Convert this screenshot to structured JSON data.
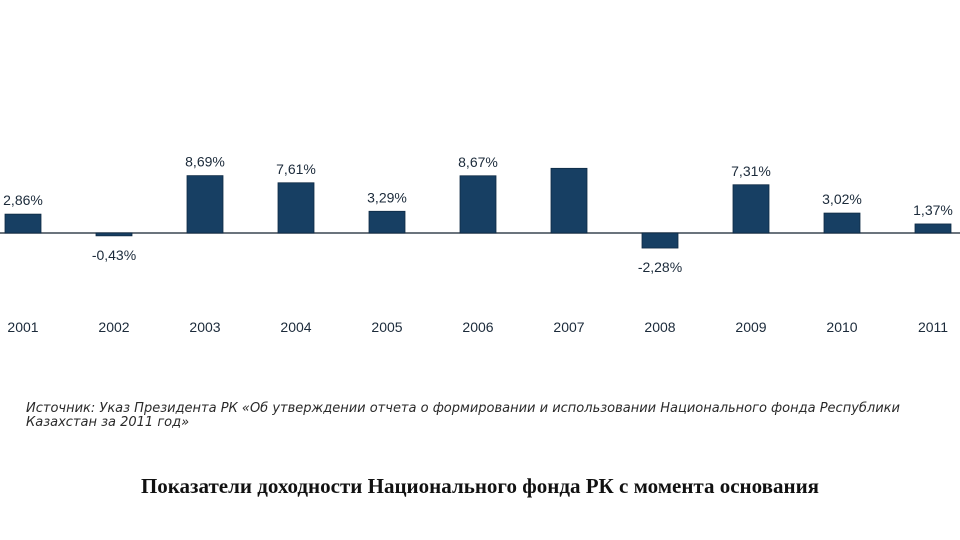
{
  "chart_data": {
    "type": "bar",
    "categories": [
      "2001",
      "2002",
      "2003",
      "2004",
      "2005",
      "2006",
      "2007",
      "2008",
      "2009",
      "2010",
      "2011"
    ],
    "values": [
      2.86,
      -0.43,
      8.69,
      7.61,
      3.29,
      8.67,
      9.8,
      -2.28,
      7.31,
      3.02,
      1.37
    ],
    "data_labels": [
      "2,86%",
      "-0,43%",
      "8,69%",
      "7,61%",
      "3,29%",
      "8,67%",
      "",
      "-2,28%",
      "7,31%",
      "3,02%",
      "1,37%"
    ],
    "title": "Показатели доходности Национального фонда РК с момента основания",
    "xlabel": "",
    "ylabel": "",
    "grid": false,
    "bar_color": "#173f63"
  },
  "source_note": "Источник: Указ Президента РК «Об утверждении отчета о формировании и использовании Национального фонда Республики Казахстан за 2011 год»"
}
